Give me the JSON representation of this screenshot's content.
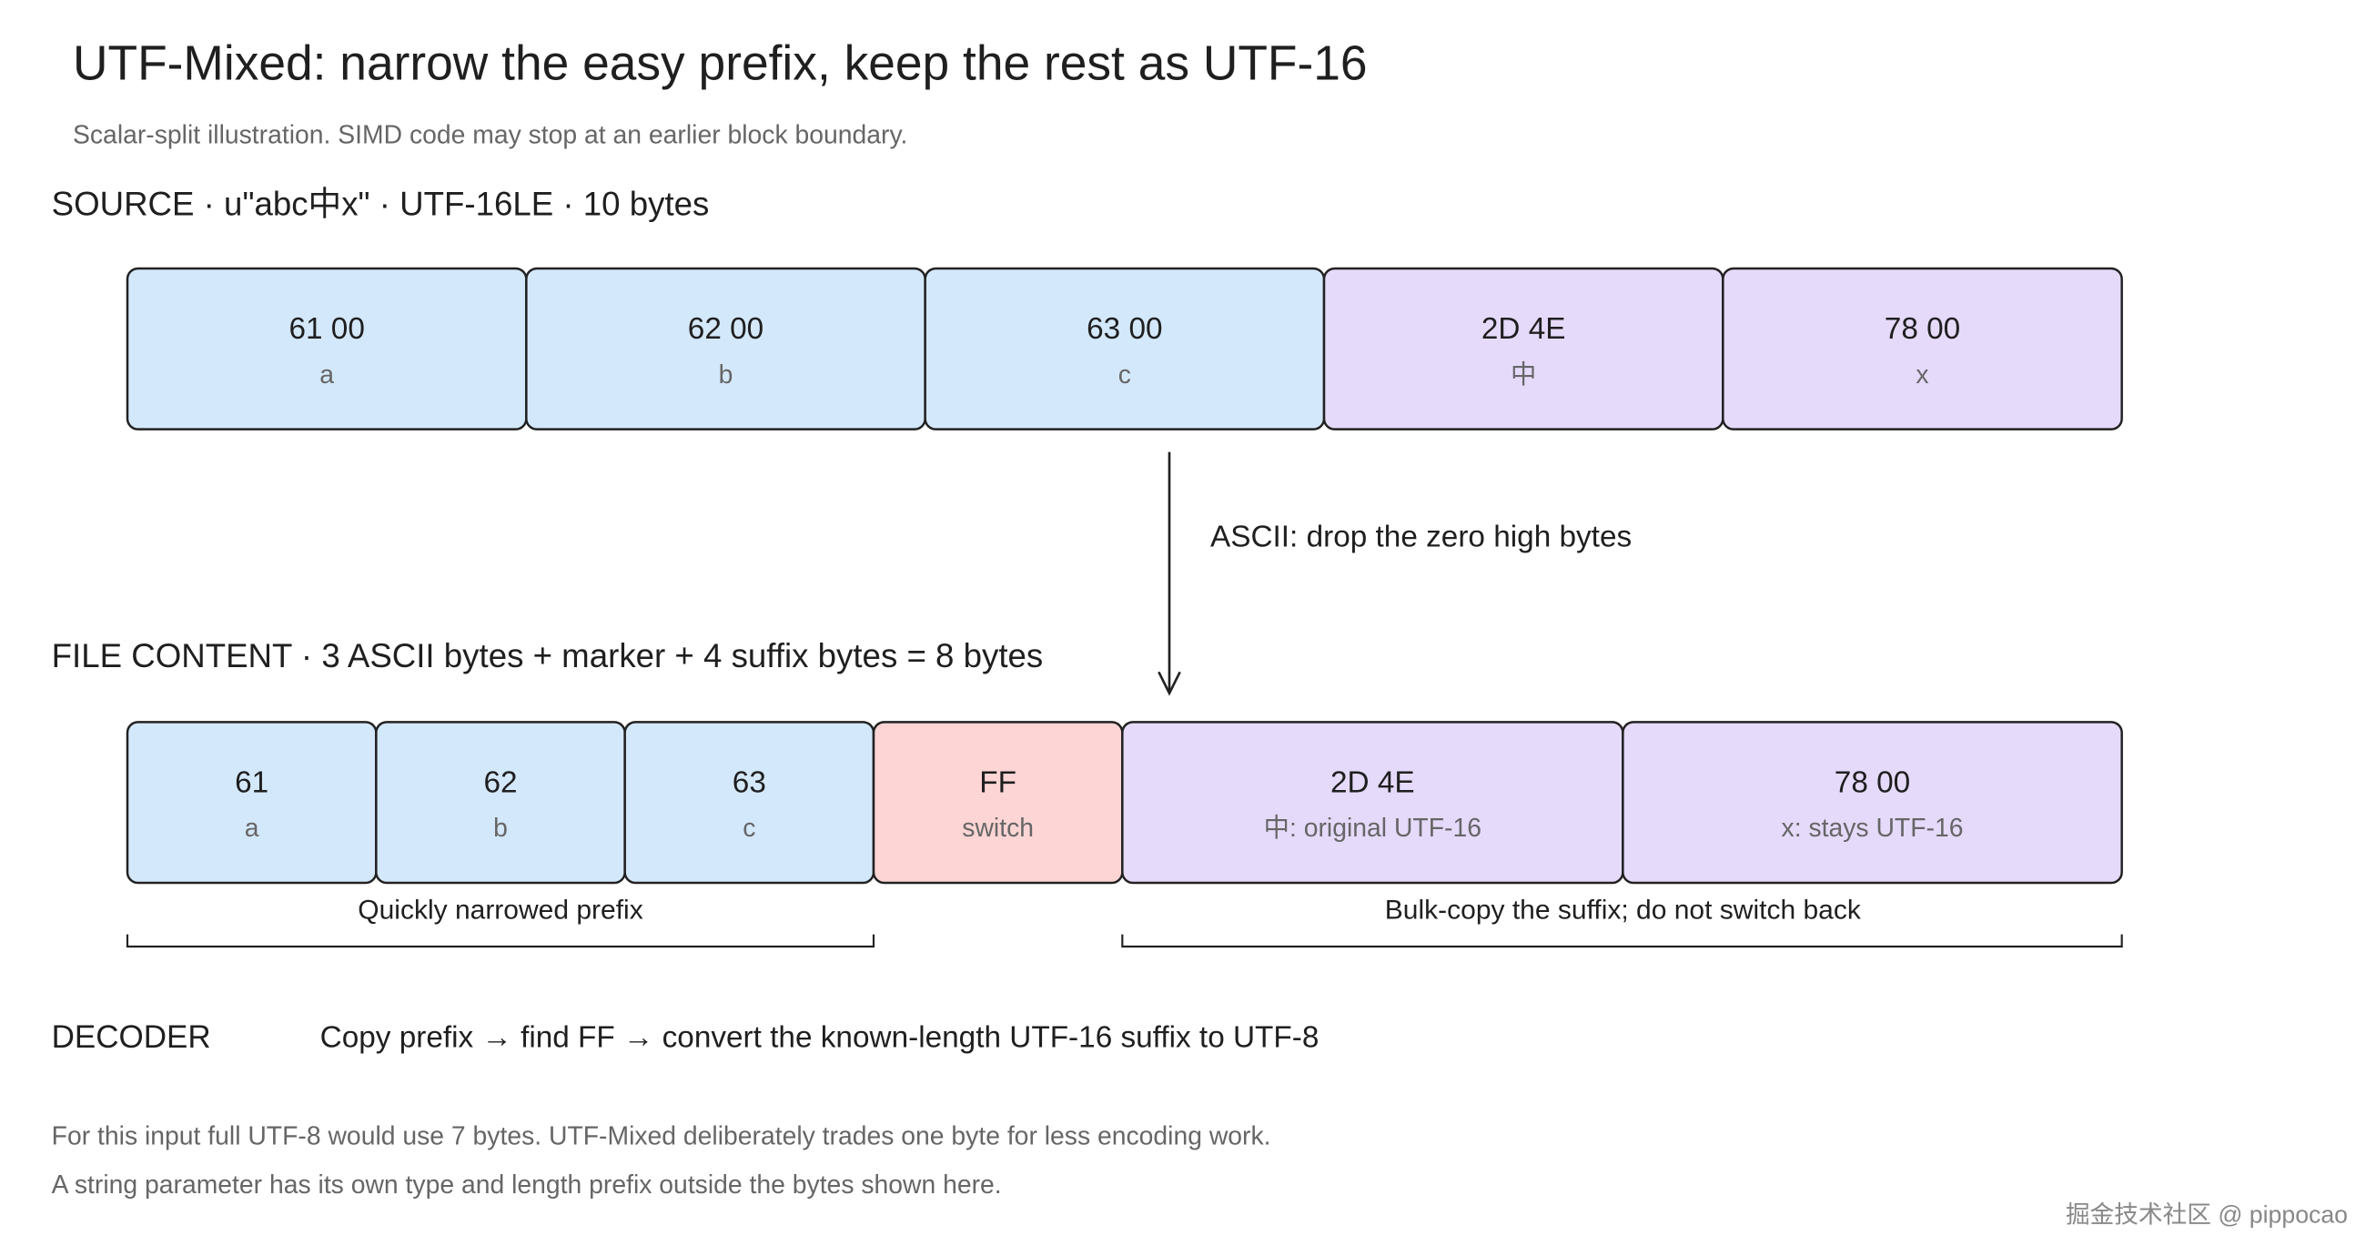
{
  "header": {
    "title": "UTF-Mixed: narrow the easy prefix, keep the rest as UTF-16",
    "subtitle": "Scalar-split illustration. SIMD code may stop at an earlier block boundary."
  },
  "source": {
    "label": "SOURCE · u\"abc中x\" · UTF-16LE · 10 bytes",
    "cells": [
      {
        "hex": "61 00",
        "note": "a",
        "color": "#d4e8fb"
      },
      {
        "hex": "62 00",
        "note": "b",
        "color": "#d4e8fb"
      },
      {
        "hex": "63 00",
        "note": "c",
        "color": "#d4e8fb"
      },
      {
        "hex": "2D 4E",
        "note": "中",
        "color": "#e6dafb"
      },
      {
        "hex": "78 00",
        "note": "x",
        "color": "#e6dafb"
      }
    ]
  },
  "arrow": {
    "label": "ASCII: drop the zero high bytes"
  },
  "file": {
    "label": "FILE CONTENT · 3 ASCII bytes + marker + 4 suffix bytes = 8 bytes",
    "cells": [
      {
        "hex": "61",
        "note": "a",
        "color": "#d4e8fb"
      },
      {
        "hex": "62",
        "note": "b",
        "color": "#d4e8fb"
      },
      {
        "hex": "63",
        "note": "c",
        "color": "#d4e8fb"
      },
      {
        "hex": "FF",
        "note": "switch",
        "color": "#fdd5d5"
      },
      {
        "hex": "2D 4E",
        "note": "中: original UTF-16",
        "color": "#e6dafb"
      },
      {
        "hex": "78 00",
        "note": "x: stays UTF-16",
        "color": "#e6dafb"
      }
    ],
    "brackets": [
      "Quickly narrowed prefix",
      "Bulk-copy the suffix; do not switch back"
    ]
  },
  "decoder": {
    "label": "DECODER",
    "text": "Copy prefix → find FF → convert the known-length UTF-16 suffix to UTF-8"
  },
  "notes": [
    "For this input full UTF-8 would use 7 bytes. UTF-Mixed deliberately trades one byte for less encoding work.",
    "A string parameter has its own type and length prefix outside the bytes shown here."
  ],
  "watermark": "掘金技术社区 @ pippocao"
}
